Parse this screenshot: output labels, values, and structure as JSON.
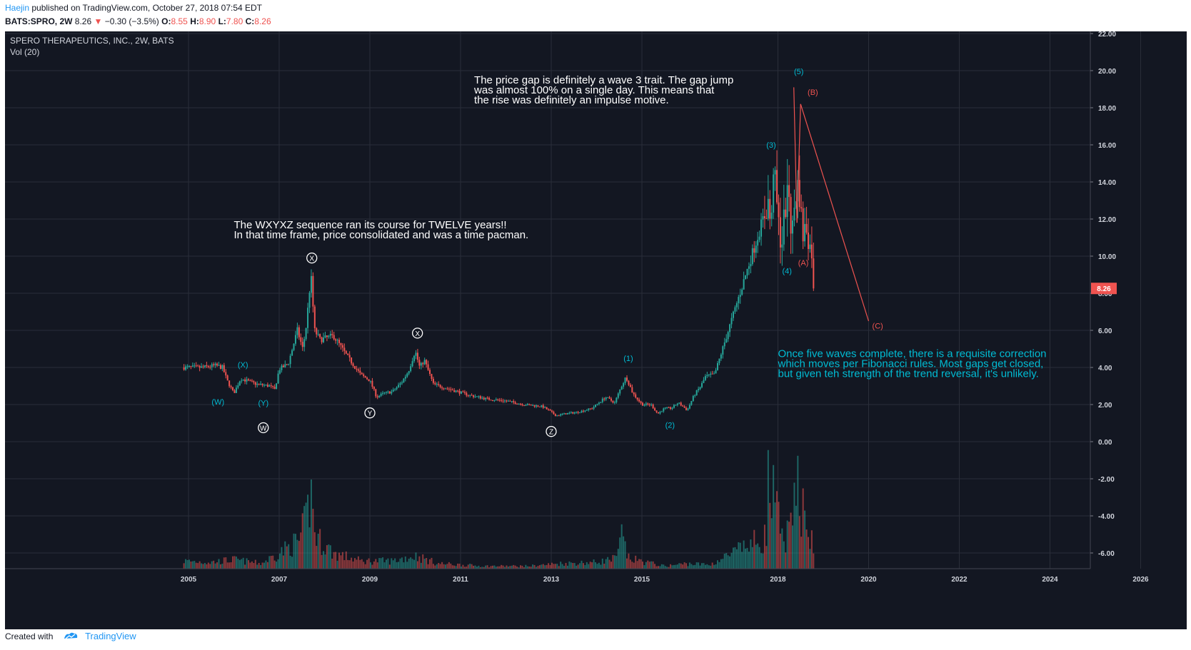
{
  "header": {
    "publisher": "Haejin",
    "published_text": " published on TradingView.com, October 27, 2018 07:54 EDT",
    "symbol": "BATS:SPRO, 2W",
    "last": "8.26",
    "change": "−0.30 (−3.5%)",
    "open_label": "O:",
    "open": "8.55",
    "high_label": "H:",
    "high": "8.90",
    "low_label": "L:",
    "low": "7.80",
    "close_label": "C:",
    "close": "8.26"
  },
  "legend": {
    "title": "SPERO THERAPEUTICS, INC., 2W, BATS",
    "volume": "Vol (20)"
  },
  "footer": {
    "created_with": "Created with",
    "brand": "TradingView"
  },
  "colors": {
    "bg": "#131722",
    "up": "#26a69a",
    "down": "#ef5350",
    "grid": "#2a2e39",
    "cyan": "#00bcd4",
    "red_label": "#ef5350",
    "white": "#ffffff"
  },
  "chart_data": {
    "type": "candlestick",
    "ylim": [
      -7,
      22
    ],
    "y_ticks": [
      22,
      20,
      18,
      16,
      14,
      12,
      10,
      8,
      6,
      4,
      2,
      0,
      -2,
      -4,
      -6
    ],
    "y_tick_labels": [
      "22.00",
      "20.00",
      "18.00",
      "16.00",
      "14.00",
      "12.00",
      "10.00",
      "8.00",
      "6.00",
      "4.00",
      "2.00",
      "0.00",
      "-2.00",
      "-4.00",
      "-6.00"
    ],
    "xlim": [
      2004.6,
      2026.7
    ],
    "x_ticks": [
      2005,
      2007,
      2009,
      2011,
      2013,
      2015,
      2018,
      2020,
      2022,
      2024,
      2026
    ],
    "x_tick_labels": [
      "2005",
      "2007",
      "2009",
      "2011",
      "2013",
      "2015",
      "2018",
      "2020",
      "2022",
      "2024",
      "2026"
    ],
    "last_price_label": "8.26",
    "last_price": 8.26,
    "price_path": [
      [
        2004.9,
        4.0
      ],
      [
        2005.3,
        4.0
      ],
      [
        2005.6,
        4.1
      ],
      [
        2005.75,
        4.0
      ],
      [
        2005.85,
        3.3
      ],
      [
        2006.0,
        2.6
      ],
      [
        2006.15,
        3.4
      ],
      [
        2006.5,
        3.1
      ],
      [
        2006.8,
        3.0
      ],
      [
        2006.9,
        2.8
      ],
      [
        2007.0,
        3.9
      ],
      [
        2007.2,
        4.2
      ],
      [
        2007.4,
        6.0
      ],
      [
        2007.52,
        5.0
      ],
      [
        2007.6,
        6.3
      ],
      [
        2007.7,
        9.0
      ],
      [
        2007.78,
        6.0
      ],
      [
        2007.9,
        5.5
      ],
      [
        2008.2,
        5.7
      ],
      [
        2008.5,
        4.6
      ],
      [
        2008.8,
        3.6
      ],
      [
        2009.0,
        3.3
      ],
      [
        2009.15,
        2.4
      ],
      [
        2009.3,
        2.6
      ],
      [
        2009.5,
        2.7
      ],
      [
        2009.7,
        3.2
      ],
      [
        2009.85,
        3.8
      ],
      [
        2010.0,
        4.9
      ],
      [
        2010.1,
        4.0
      ],
      [
        2010.2,
        4.4
      ],
      [
        2010.4,
        3.1
      ],
      [
        2010.8,
        2.8
      ],
      [
        2011.2,
        2.5
      ],
      [
        2011.6,
        2.3
      ],
      [
        2012.0,
        2.2
      ],
      [
        2012.4,
        2.0
      ],
      [
        2012.8,
        1.9
      ],
      [
        2013.0,
        1.6
      ],
      [
        2013.1,
        1.4
      ],
      [
        2013.3,
        1.5
      ],
      [
        2013.6,
        1.6
      ],
      [
        2013.9,
        1.8
      ],
      [
        2014.2,
        2.4
      ],
      [
        2014.4,
        2.1
      ],
      [
        2014.55,
        3.0
      ],
      [
        2014.65,
        3.5
      ],
      [
        2014.8,
        2.6
      ],
      [
        2015.0,
        2.0
      ],
      [
        2015.2,
        2.0
      ],
      [
        2015.35,
        1.5
      ],
      [
        2015.5,
        1.8
      ],
      [
        2015.65,
        1.8
      ],
      [
        2015.8,
        2.1
      ],
      [
        2016.0,
        1.7
      ],
      [
        2016.15,
        2.5
      ],
      [
        2016.3,
        3.0
      ],
      [
        2016.4,
        3.5
      ],
      [
        2016.55,
        3.6
      ],
      [
        2016.6,
        3.6
      ],
      [
        2017.8,
        13.0
      ],
      [
        2017.85,
        11.0
      ],
      [
        2017.9,
        15.0
      ],
      [
        2018.0,
        12.0
      ],
      [
        2018.08,
        10.5
      ],
      [
        2018.15,
        12.5
      ],
      [
        2018.25,
        13.5
      ],
      [
        2018.3,
        10.8
      ],
      [
        2018.38,
        13.2
      ],
      [
        2018.46,
        14.0
      ],
      [
        2018.5,
        12.5
      ],
      [
        2018.56,
        11.0
      ],
      [
        2018.62,
        11.8
      ],
      [
        2018.7,
        10.5
      ],
      [
        2018.77,
        10.2
      ],
      [
        2018.82,
        8.26
      ]
    ],
    "volume_scale": "relative",
    "volume_profile": [
      [
        2004.9,
        0.06
      ],
      [
        2005.5,
        0.05
      ],
      [
        2006.0,
        0.07
      ],
      [
        2006.6,
        0.04
      ],
      [
        2007.0,
        0.12
      ],
      [
        2007.45,
        0.22
      ],
      [
        2007.6,
        0.38
      ],
      [
        2007.7,
        0.6
      ],
      [
        2007.8,
        0.25
      ],
      [
        2008.2,
        0.12
      ],
      [
        2008.8,
        0.06
      ],
      [
        2009.5,
        0.06
      ],
      [
        2010.0,
        0.1
      ],
      [
        2010.5,
        0.04
      ],
      [
        2011.5,
        0.02
      ],
      [
        2012.5,
        0.02
      ],
      [
        2013.2,
        0.04
      ],
      [
        2014.0,
        0.05
      ],
      [
        2014.45,
        0.08
      ],
      [
        2014.55,
        0.26
      ],
      [
        2014.7,
        0.08
      ],
      [
        2015.5,
        0.02
      ],
      [
        2016.0,
        0.04
      ],
      [
        2016.5,
        0.03
      ],
      [
        2017.75,
        0.25
      ],
      [
        2017.8,
        0.85
      ],
      [
        2017.85,
        0.4
      ],
      [
        2017.9,
        0.55
      ],
      [
        2018.1,
        0.22
      ],
      [
        2018.3,
        0.3
      ],
      [
        2018.4,
        0.55
      ],
      [
        2018.45,
        0.78
      ],
      [
        2018.5,
        0.45
      ],
      [
        2018.6,
        0.6
      ],
      [
        2018.7,
        0.26
      ],
      [
        2018.8,
        0.15
      ]
    ],
    "wave_labels": [
      {
        "text": "X",
        "x": 2007.72,
        "y": 9.9,
        "style": "circle"
      },
      {
        "text": "X",
        "x": 2010.05,
        "y": 5.85,
        "style": "circle"
      },
      {
        "text": "Y",
        "x": 2009.0,
        "y": 1.55,
        "style": "circle"
      },
      {
        "text": "W",
        "x": 2006.65,
        "y": 0.75,
        "style": "circle"
      },
      {
        "text": "Z",
        "x": 2013.0,
        "y": 0.55,
        "style": "circle"
      },
      {
        "text": "(X)",
        "x": 2006.2,
        "y": 4.0,
        "color": "cyan"
      },
      {
        "text": "(W)",
        "x": 2005.65,
        "y": 2.0,
        "color": "cyan"
      },
      {
        "text": "(Y)",
        "x": 2006.65,
        "y": 1.95,
        "color": "cyan"
      },
      {
        "text": "(1)",
        "x": 2014.7,
        "y": 4.35,
        "color": "cyan"
      },
      {
        "text": "(2)",
        "x": 2015.62,
        "y": 0.75,
        "color": "cyan"
      },
      {
        "text": "(3)",
        "x": 2017.85,
        "y": 15.85,
        "color": "cyan"
      },
      {
        "text": "(4)",
        "x": 2018.2,
        "y": 9.05,
        "color": "cyan"
      },
      {
        "text": "(5)",
        "x": 2018.46,
        "y": 19.8,
        "color": "cyan"
      },
      {
        "text": "(B)",
        "x": 2018.77,
        "y": 18.7,
        "color": "red"
      },
      {
        "text": "(A)",
        "x": 2018.56,
        "y": 9.5,
        "color": "red"
      },
      {
        "text": "(C)",
        "x": 2020.2,
        "y": 6.1,
        "color": "red"
      }
    ],
    "drawn_lines": [
      {
        "x1": 2018.35,
        "y1": 19.1,
        "x2": 2018.42,
        "y2": 11.8,
        "color": "red"
      },
      {
        "x1": 2018.42,
        "y1": 11.8,
        "x2": 2018.5,
        "y2": 18.2,
        "color": "red"
      },
      {
        "x1": 2018.5,
        "y1": 18.2,
        "x2": 2020.0,
        "y2": 6.5,
        "color": "red"
      }
    ],
    "annotations": [
      {
        "lines": [
          "The price gap is definitely a wave 3 trait. The gap jump",
          "was almost 100% on a single day. This means that",
          "the rise was definitely an impulse motive."
        ],
        "x": 2011.3,
        "y": 19.3,
        "color": "white"
      },
      {
        "lines": [
          "The WXYXZ sequence ran its course for TWELVE years!!",
          "In that time frame, price consolidated and was a time pacman."
        ],
        "x": 2006.0,
        "y": 11.5,
        "color": "white"
      },
      {
        "lines": [
          "Once five waves complete, there is a requisite correction",
          "which moves per Fibonacci rules. Most gaps get closed,",
          "but given teh strength of the trend reversal, it's unlikely."
        ],
        "x": 2018.0,
        "y": 4.55,
        "color": "cyan"
      }
    ]
  }
}
